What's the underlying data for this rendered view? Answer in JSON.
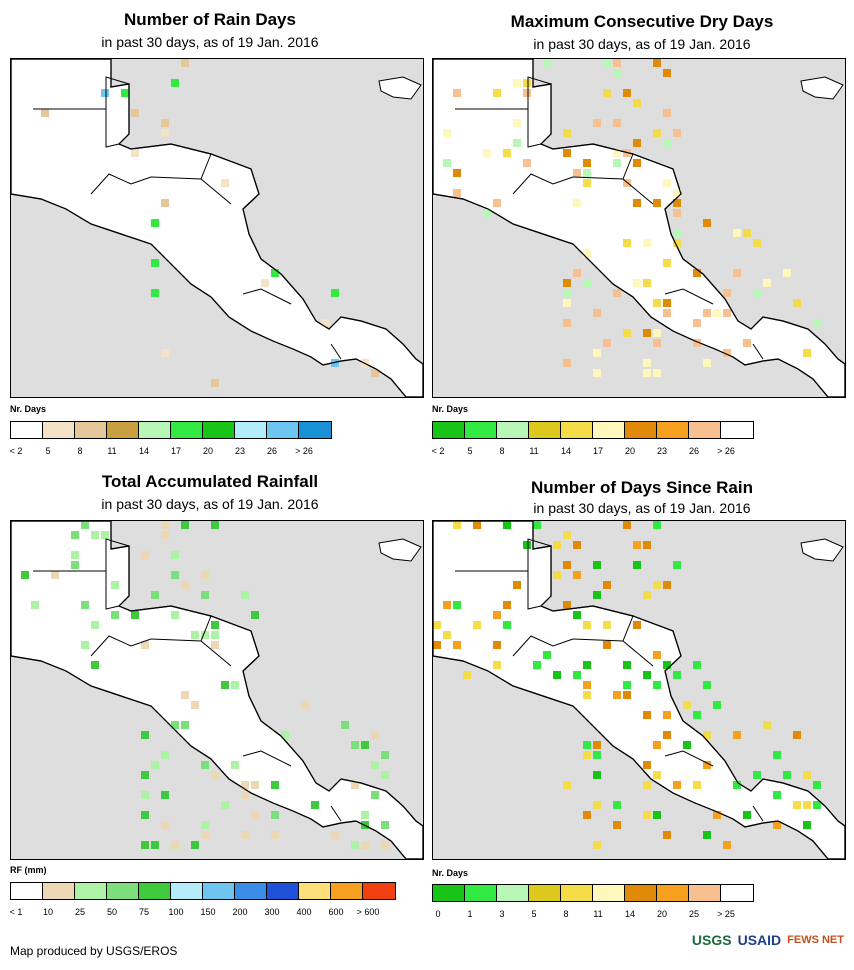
{
  "panels": [
    {
      "title": "Number of Rain Days",
      "subtitle": "in past 30 days, as of 19 Jan. 2016",
      "legend_title": "Nr. Days",
      "legend_colors": [
        "#ffffff",
        "#f5e3c8",
        "#e5c79a",
        "#c8a041",
        "#b8f7b8",
        "#33e843",
        "#17c417",
        "#b5ecfa",
        "#6ec5f0",
        "#1991d4"
      ],
      "legend_ticks": [
        "< 2",
        "5",
        "8",
        "11",
        "14",
        "17",
        "20",
        "23",
        "26",
        "> 26"
      ],
      "fill": "#ffffff",
      "dots": [
        "#f5e3c8",
        "#e5c79a",
        "#33e843",
        "#6ec5f0"
      ]
    },
    {
      "title": "Maximum Consecutive Dry Days",
      "subtitle": "in past 30 days, as of 19 Jan. 2016",
      "legend_title": "Nr. Days",
      "legend_colors": [
        "#17c417",
        "#33e843",
        "#b8f7b8",
        "#dcc81e",
        "#f5dc4a",
        "#fff8bc",
        "#e08a0a",
        "#f5a01e",
        "#f8c090",
        "#ffffff"
      ],
      "legend_ticks": [
        "< 2",
        "5",
        "8",
        "11",
        "14",
        "17",
        "20",
        "23",
        "26",
        "> 26"
      ],
      "fill": "#ffffff",
      "dots": [
        "#f5dc4a",
        "#fff8bc",
        "#e08a0a",
        "#f8c090",
        "#b8f7b8"
      ]
    },
    {
      "title": "Total Accumulated Rainfall",
      "subtitle": "in past 30 days, as of 19 Jan. 2016",
      "legend_title": "RF (mm)",
      "legend_colors": [
        "#ffffff",
        "#ecd8b5",
        "#aef2a5",
        "#7be07b",
        "#3ec93e",
        "#b5ecfa",
        "#6ec5f0",
        "#3a8ee8",
        "#1e50d8",
        "#fde07a",
        "#f5a01e",
        "#f04010"
      ],
      "legend_ticks": [
        "< 1",
        "10",
        "25",
        "50",
        "75",
        "100",
        "150",
        "200",
        "300",
        "400",
        "600",
        "> 600"
      ],
      "fill": "#ffffff",
      "dots": [
        "#ecd8b5",
        "#aef2a5",
        "#7be07b",
        "#3ec93e"
      ]
    },
    {
      "title": "Number of Days Since Rain",
      "subtitle": "in past 30 days, as of 19 Jan. 2016",
      "legend_title": "Nr. Days",
      "legend_colors": [
        "#17c417",
        "#33e843",
        "#b8f7b8",
        "#dcc81e",
        "#f5dc4a",
        "#fff8bc",
        "#e08a0a",
        "#f5a01e",
        "#f8c090",
        "#ffffff"
      ],
      "legend_ticks": [
        "0",
        "1",
        "3",
        "5",
        "8",
        "11",
        "14",
        "20",
        "25",
        "> 25"
      ],
      "fill": "#ffffff",
      "dots": [
        "#e08a0a",
        "#f5a01e",
        "#17c417",
        "#f5dc4a",
        "#33e843"
      ]
    }
  ],
  "footer": "Map produced by USGS/EROS",
  "logos": [
    "USGS",
    "USAID",
    "FEWS NET"
  ]
}
